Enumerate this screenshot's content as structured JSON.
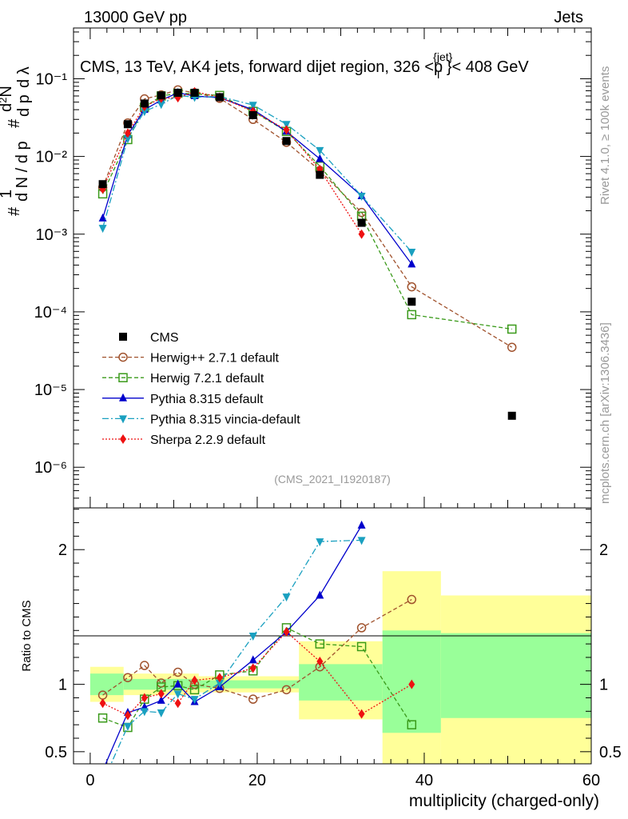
{
  "header": {
    "energy": "13000 GeV pp",
    "category": "Jets"
  },
  "title": "CMS, 13 TeV, AK4 jets, forward dijet region, 326 <p",
  "title_sup": "{jet}",
  "title_sub": "T",
  "title_end": "}< 408 GeV",
  "side_text_top": "Rivet 4.1.0, ≥ 100k events",
  "side_text_bottom": "mcplots.cern.ch [arXiv:1306.3436]",
  "analysis_tag": "(CMS_2021_I1920187)",
  "ylabel_main": "1/N dN/dpT d²N/dpT dλ",
  "ylabel_ratio": "Ratio to CMS",
  "xlabel": "multiplicity (charged-only)",
  "chart_data": [
    {
      "type": "line",
      "panel": "main",
      "yscale": "log",
      "xlim": [
        -2,
        60
      ],
      "ylim": [
        3e-07,
        0.45
      ],
      "ytick_labels": [
        "10⁻⁶",
        "10⁻⁵",
        "10⁻⁴",
        "10⁻³",
        "10⁻²",
        "10⁻¹"
      ],
      "ytick_values": [
        1e-06,
        1e-05,
        0.0001,
        0.001,
        0.01,
        0.1
      ],
      "series": [
        {
          "name": "CMS",
          "color": "#000000",
          "marker": "square-filled",
          "dash": "none",
          "x": [
            1.5,
            4.5,
            6.5,
            8.5,
            10.5,
            12.5,
            15.5,
            19.5,
            23.5,
            27.5,
            32.5,
            38.5,
            50.5
          ],
          "y": [
            0.0044,
            0.026,
            0.048,
            0.061,
            0.066,
            0.066,
            0.058,
            0.034,
            0.0158,
            0.0058,
            0.0014,
            0.000135,
            4.6e-06
          ]
        },
        {
          "name": "Herwig++ 2.7.1 default",
          "color": "#a0522d",
          "marker": "circle-open",
          "dash": "5,3",
          "x": [
            1.5,
            4.5,
            6.5,
            8.5,
            10.5,
            12.5,
            15.5,
            19.5,
            23.5,
            27.5,
            32.5,
            38.5,
            50.5
          ],
          "y": [
            0.004,
            0.027,
            0.055,
            0.062,
            0.072,
            0.066,
            0.056,
            0.03,
            0.0152,
            0.0066,
            0.0019,
            0.00021,
            3.5e-05
          ]
        },
        {
          "name": "Herwig 7.2.1 default",
          "color": "#3a9a1a",
          "marker": "square-open",
          "dash": "5,3",
          "x": [
            1.5,
            4.5,
            6.5,
            8.5,
            10.5,
            12.5,
            15.5,
            19.5,
            23.5,
            27.5,
            32.5,
            38.5,
            50.5
          ],
          "y": [
            0.0033,
            0.0165,
            0.043,
            0.06,
            0.065,
            0.064,
            0.061,
            0.038,
            0.021,
            0.0075,
            0.0017,
            9.2e-05,
            6e-05
          ]
        },
        {
          "name": "Pythia 8.315 default",
          "color": "#0000cc",
          "marker": "triangle-up",
          "dash": "none",
          "x": [
            1.5,
            4.5,
            6.5,
            8.5,
            10.5,
            12.5,
            15.5,
            19.5,
            23.5,
            27.5,
            32.5,
            38.5
          ],
          "y": [
            0.0016,
            0.019,
            0.04,
            0.053,
            0.066,
            0.06,
            0.057,
            0.04,
            0.021,
            0.0093,
            0.0031,
            0.00041
          ]
        },
        {
          "name": "Pythia 8.315 vincia-default",
          "color": "#1aa0c0",
          "marker": "triangle-down",
          "dash": "8,3,2,3",
          "x": [
            1.5,
            4.5,
            6.5,
            8.5,
            10.5,
            12.5,
            15.5,
            19.5,
            23.5,
            27.5,
            32.5,
            38.5
          ],
          "y": [
            0.0012,
            0.017,
            0.038,
            0.047,
            0.061,
            0.058,
            0.059,
            0.046,
            0.026,
            0.012,
            0.0031,
            0.00059
          ]
        },
        {
          "name": "Sherpa 2.2.9 default",
          "color": "#ee1111",
          "marker": "diamond",
          "dash": "2,2",
          "x": [
            1.5,
            4.5,
            6.5,
            8.5,
            10.5,
            12.5,
            15.5,
            19.5,
            23.5,
            27.5,
            32.5
          ],
          "y": [
            0.0038,
            0.02,
            0.044,
            0.056,
            0.057,
            0.068,
            0.058,
            0.038,
            0.022,
            0.0068,
            0.001
          ]
        }
      ]
    },
    {
      "type": "line",
      "panel": "ratio",
      "ylabel": "Ratio to CMS",
      "xlim": [
        -2,
        60
      ],
      "ylim": [
        0.41,
        2.31
      ],
      "ytick_values": [
        0.5,
        1,
        2
      ],
      "ytick_labels": [
        "0.5",
        "1",
        "2"
      ],
      "xtick_values": [
        0,
        20,
        40,
        60
      ],
      "xtick_labels": [
        "0",
        "20",
        "40",
        "60"
      ],
      "uncertainty_bands": [
        {
          "x0": 0,
          "x1": 4,
          "green": [
            0.92,
            1.08
          ],
          "yellow": [
            0.87,
            1.13
          ]
        },
        {
          "x0": 4,
          "x1": 13,
          "green": [
            0.96,
            1.04
          ],
          "yellow": [
            0.92,
            1.08
          ]
        },
        {
          "x0": 13,
          "x1": 25,
          "green": [
            0.97,
            1.03
          ],
          "yellow": [
            0.94,
            1.06
          ]
        },
        {
          "x0": 25,
          "x1": 35,
          "green": [
            0.88,
            1.15
          ],
          "yellow": [
            0.74,
            1.32
          ]
        },
        {
          "x0": 35,
          "x1": 42,
          "green": [
            0.64,
            1.4
          ],
          "yellow": [
            0.41,
            1.84
          ]
        },
        {
          "x0": 42,
          "x1": 60,
          "green": [
            0.75,
            1.38
          ],
          "yellow": [
            0.41,
            1.66
          ]
        }
      ],
      "series": [
        {
          "name": "Herwig++ 2.7.1 default",
          "x": [
            1.5,
            4.5,
            6.5,
            8.5,
            10.5,
            12.5,
            15.5,
            19.5,
            23.5,
            27.5,
            32.5,
            38.5
          ],
          "y": [
            0.92,
            1.05,
            1.14,
            1.01,
            1.09,
            1.0,
            0.97,
            0.89,
            0.96,
            1.13,
            1.42,
            1.63
          ]
        },
        {
          "name": "Herwig 7.2.1 default",
          "x": [
            1.5,
            4.5,
            6.5,
            8.5,
            10.5,
            12.5,
            15.5,
            19.5,
            23.5,
            27.5,
            32.5,
            38.5
          ],
          "y": [
            0.75,
            0.68,
            0.89,
            0.98,
            0.99,
            0.96,
            1.07,
            1.1,
            1.42,
            1.3,
            1.28,
            0.7
          ]
        },
        {
          "name": "Pythia 8.315 default",
          "x": [
            1.5,
            4.5,
            6.5,
            8.5,
            10.5,
            12.5,
            15.5,
            19.5,
            23.5,
            27.5,
            32.5
          ],
          "y": [
            0.36,
            0.79,
            0.83,
            0.88,
            1.0,
            0.87,
            0.98,
            1.18,
            1.39,
            1.66,
            2.18
          ]
        },
        {
          "name": "Pythia 8.315 vincia-default",
          "x": [
            1.5,
            4.5,
            6.5,
            8.5,
            10.5,
            12.5,
            15.5,
            19.5,
            23.5,
            27.5,
            32.5
          ],
          "y": [
            0.27,
            0.69,
            0.8,
            0.79,
            0.93,
            0.89,
            1.01,
            1.36,
            1.65,
            2.06,
            2.07
          ]
        },
        {
          "name": "Sherpa 2.2.9 default",
          "x": [
            1.5,
            4.5,
            6.5,
            8.5,
            10.5,
            12.5,
            15.5,
            19.5,
            23.5,
            27.5,
            32.5,
            38.5
          ],
          "y": [
            0.86,
            0.77,
            0.9,
            0.93,
            0.86,
            1.03,
            1.05,
            1.12,
            1.39,
            1.17,
            0.78,
            1.0
          ]
        }
      ]
    }
  ]
}
